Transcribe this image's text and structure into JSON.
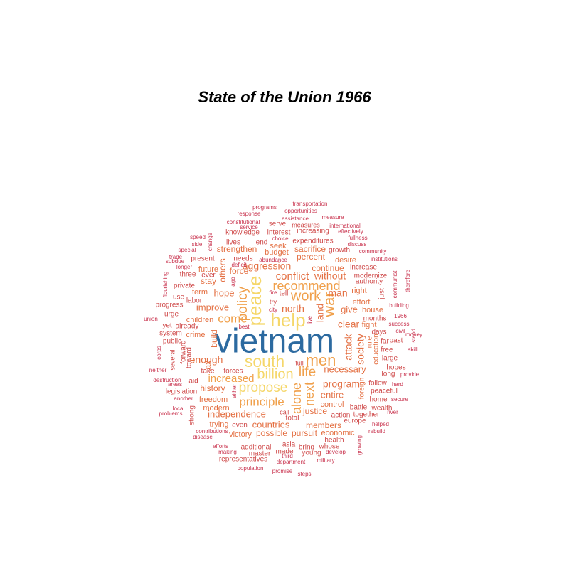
{
  "chart_data": {
    "type": "wordcloud",
    "title": "State of the Union 1966",
    "colors": {
      "tier1": "#2c6aa0",
      "tier2": "#f5d76a",
      "tier3": "#f0a04b",
      "tier4": "#e47043",
      "tier5": "#cf4a4a",
      "tier6": "#c9344f"
    },
    "words": [
      {
        "text": "vietnam",
        "tier": 1,
        "rot": 0
      },
      {
        "text": "help",
        "tier": 2,
        "rot": 0
      },
      {
        "text": "peace",
        "tier": 2,
        "rot": 90
      },
      {
        "text": "south",
        "tier": 2,
        "rot": 0
      },
      {
        "text": "billion",
        "tier": 2,
        "rot": 0
      },
      {
        "text": "propose",
        "tier": 2,
        "rot": 0
      },
      {
        "text": "war",
        "tier": 3,
        "rot": 90
      },
      {
        "text": "men",
        "tier": 3,
        "rot": 0
      },
      {
        "text": "work",
        "tier": 3,
        "rot": 0
      },
      {
        "text": "policy",
        "tier": 3,
        "rot": 90
      },
      {
        "text": "recommend",
        "tier": 3,
        "rot": 0
      },
      {
        "text": "life",
        "tier": 3,
        "rot": 0
      },
      {
        "text": "principle",
        "tier": 3,
        "rot": 0
      },
      {
        "text": "alone",
        "tier": 3,
        "rot": 90
      },
      {
        "text": "next",
        "tier": 3,
        "rot": 90
      },
      {
        "text": "increased",
        "tier": 3,
        "rot": 0
      },
      {
        "text": "come",
        "tier": 3,
        "rot": 0
      },
      {
        "text": "aggression",
        "tier": 4,
        "rot": 0
      },
      {
        "text": "conflict",
        "tier": 4,
        "rot": 0
      },
      {
        "text": "without",
        "tier": 4,
        "rot": 0
      },
      {
        "text": "land",
        "tier": 4,
        "rot": 90
      },
      {
        "text": "north",
        "tier": 4,
        "rot": 0
      },
      {
        "text": "man",
        "tier": 4,
        "rot": 0
      },
      {
        "text": "give",
        "tier": 4,
        "rot": 0
      },
      {
        "text": "clear",
        "tier": 4,
        "rot": 0
      },
      {
        "text": "attack",
        "tier": 4,
        "rot": 90
      },
      {
        "text": "society",
        "tier": 4,
        "rot": 90
      },
      {
        "text": "enough",
        "tier": 4,
        "rot": 0
      },
      {
        "text": "necessary",
        "tier": 4,
        "rot": 0
      },
      {
        "text": "program",
        "tier": 4,
        "rot": 0
      },
      {
        "text": "entire",
        "tier": 4,
        "rot": 0
      },
      {
        "text": "independence",
        "tier": 4,
        "rot": 0
      },
      {
        "text": "countries",
        "tier": 4,
        "rot": 0
      },
      {
        "text": "members",
        "tier": 4,
        "rot": 0
      },
      {
        "text": "justice",
        "tier": 4,
        "rot": 0
      },
      {
        "text": "improve",
        "tier": 4,
        "rot": 0
      },
      {
        "text": "hope",
        "tier": 4,
        "rot": 0
      },
      {
        "text": "others",
        "tier": 4,
        "rot": 90
      },
      {
        "text": "continue",
        "tier": 4,
        "rot": 0
      },
      {
        "text": "percent",
        "tier": 4,
        "rot": 0
      },
      {
        "text": "sacrifice",
        "tier": 4,
        "rot": 0
      },
      {
        "text": "strengthen",
        "tier": 4,
        "rot": 0
      },
      {
        "text": "build",
        "tier": 4,
        "rot": 90
      },
      {
        "text": "tax",
        "tier": 4,
        "rot": 90
      },
      {
        "text": "history",
        "tier": 4,
        "rot": 0
      },
      {
        "text": "freedom",
        "tier": 4,
        "rot": 0
      },
      {
        "text": "possible",
        "tier": 4,
        "rot": 0
      },
      {
        "text": "pursuit",
        "tier": 4,
        "rot": 0
      },
      {
        "text": "victory",
        "tier": 4,
        "rot": 0
      },
      {
        "text": "force",
        "tier": 4,
        "rot": 0
      },
      {
        "text": "stay",
        "tier": 4,
        "rot": 0
      },
      {
        "text": "term",
        "tier": 4,
        "rot": 0
      },
      {
        "text": "future",
        "tier": 4,
        "rot": 0
      },
      {
        "text": "crime",
        "tier": 4,
        "rot": 0
      },
      {
        "text": "children",
        "tier": 4,
        "rot": 0
      },
      {
        "text": "control",
        "tier": 4,
        "rot": 0
      },
      {
        "text": "modern",
        "tier": 4,
        "rot": 0
      },
      {
        "text": "trying",
        "tier": 4,
        "rot": 0
      },
      {
        "text": "seek",
        "tier": 4,
        "rot": 0
      },
      {
        "text": "budget",
        "tier": 4,
        "rot": 0
      },
      {
        "text": "right",
        "tier": 4,
        "rot": 0
      },
      {
        "text": "effort",
        "tier": 4,
        "rot": 0
      },
      {
        "text": "house",
        "tier": 4,
        "rot": 0
      },
      {
        "text": "fight",
        "tier": 4,
        "rot": 0
      },
      {
        "text": "education",
        "tier": 4,
        "rot": 90
      },
      {
        "text": "rule",
        "tier": 4,
        "rot": 90
      },
      {
        "text": "foreign",
        "tier": 4,
        "rot": 90
      },
      {
        "text": "economic",
        "tier": 4,
        "rot": 0
      },
      {
        "text": "desire",
        "tier": 4,
        "rot": 0
      },
      {
        "text": "increase",
        "tier": 5,
        "rot": 0
      },
      {
        "text": "modernize",
        "tier": 5,
        "rot": 0
      },
      {
        "text": "authority",
        "tier": 5,
        "rot": 0
      },
      {
        "text": "just",
        "tier": 5,
        "rot": 90
      },
      {
        "text": "months",
        "tier": 5,
        "rot": 0
      },
      {
        "text": "days",
        "tier": 5,
        "rot": 0
      },
      {
        "text": "past",
        "tier": 5,
        "rot": 0
      },
      {
        "text": "far",
        "tier": 5,
        "rot": 0
      },
      {
        "text": "free",
        "tier": 5,
        "rot": 0
      },
      {
        "text": "large",
        "tier": 5,
        "rot": 0
      },
      {
        "text": "hopes",
        "tier": 5,
        "rot": 0
      },
      {
        "text": "long",
        "tier": 5,
        "rot": 0
      },
      {
        "text": "follow",
        "tier": 5,
        "rot": 0
      },
      {
        "text": "peaceful",
        "tier": 5,
        "rot": 0
      },
      {
        "text": "home",
        "tier": 5,
        "rot": 0
      },
      {
        "text": "battle",
        "tier": 5,
        "rot": 0
      },
      {
        "text": "wealth",
        "tier": 5,
        "rot": 0
      },
      {
        "text": "together",
        "tier": 5,
        "rot": 0
      },
      {
        "text": "europe",
        "tier": 5,
        "rot": 0
      },
      {
        "text": "action",
        "tier": 5,
        "rot": 0
      },
      {
        "text": "total",
        "tier": 5,
        "rot": 0
      },
      {
        "text": "call",
        "tier": 5,
        "rot": 0
      },
      {
        "text": "even",
        "tier": 5,
        "rot": 0
      },
      {
        "text": "whose",
        "tier": 5,
        "rot": 0
      },
      {
        "text": "bring",
        "tier": 5,
        "rot": 0
      },
      {
        "text": "asia",
        "tier": 5,
        "rot": 0
      },
      {
        "text": "made",
        "tier": 5,
        "rot": 0
      },
      {
        "text": "young",
        "tier": 5,
        "rot": 0
      },
      {
        "text": "health",
        "tier": 5,
        "rot": 0
      },
      {
        "text": "additional",
        "tier": 5,
        "rot": 0
      },
      {
        "text": "master",
        "tier": 5,
        "rot": 0
      },
      {
        "text": "representatives",
        "tier": 5,
        "rot": 0
      },
      {
        "text": "legislation",
        "tier": 5,
        "rot": 0
      },
      {
        "text": "aid",
        "tier": 5,
        "rot": 0
      },
      {
        "text": "take",
        "tier": 5,
        "rot": 0
      },
      {
        "text": "forces",
        "tier": 5,
        "rot": 0
      },
      {
        "text": "full",
        "tier": 5,
        "rot": 0
      },
      {
        "text": "toward",
        "tier": 5,
        "rot": 90
      },
      {
        "text": "forward",
        "tier": 5,
        "rot": 90
      },
      {
        "text": "several",
        "tier": 5,
        "rot": 90
      },
      {
        "text": "strong",
        "tier": 5,
        "rot": 90
      },
      {
        "text": "public",
        "tier": 5,
        "rot": 0
      },
      {
        "text": "system",
        "tier": 5,
        "rot": 0
      },
      {
        "text": "already",
        "tier": 5,
        "rot": 0
      },
      {
        "text": "yet",
        "tier": 5,
        "rot": 0
      },
      {
        "text": "urge",
        "tier": 5,
        "rot": 0
      },
      {
        "text": "progress",
        "tier": 5,
        "rot": 0
      },
      {
        "text": "use",
        "tier": 5,
        "rot": 0
      },
      {
        "text": "labor",
        "tier": 5,
        "rot": 0
      },
      {
        "text": "private",
        "tier": 5,
        "rot": 0
      },
      {
        "text": "three",
        "tier": 5,
        "rot": 0
      },
      {
        "text": "present",
        "tier": 5,
        "rot": 0
      },
      {
        "text": "ever",
        "tier": 5,
        "rot": 0
      },
      {
        "text": "needs",
        "tier": 5,
        "rot": 0
      },
      {
        "text": "lives",
        "tier": 5,
        "rot": 0
      },
      {
        "text": "end",
        "tier": 5,
        "rot": 0
      },
      {
        "text": "knowledge",
        "tier": 5,
        "rot": 0
      },
      {
        "text": "interest",
        "tier": 5,
        "rot": 0
      },
      {
        "text": "increasing",
        "tier": 5,
        "rot": 0
      },
      {
        "text": "serve",
        "tier": 5,
        "rot": 0
      },
      {
        "text": "measures",
        "tier": 5,
        "rot": 0
      },
      {
        "text": "expenditures",
        "tier": 5,
        "rot": 0
      },
      {
        "text": "growth",
        "tier": 5,
        "rot": 0
      },
      {
        "text": "tell",
        "tier": 5,
        "rot": 0
      },
      {
        "text": "try",
        "tier": 5,
        "rot": 0
      },
      {
        "text": "neither",
        "tier": 6,
        "rot": 0
      },
      {
        "text": "destruction",
        "tier": 6,
        "rot": 0
      },
      {
        "text": "areas",
        "tier": 6,
        "rot": 0
      },
      {
        "text": "corps",
        "tier": 6,
        "rot": 90
      },
      {
        "text": "another",
        "tier": 6,
        "rot": 0
      },
      {
        "text": "local",
        "tier": 6,
        "rot": 0
      },
      {
        "text": "problems",
        "tier": 6,
        "rot": 0
      },
      {
        "text": "contributions",
        "tier": 6,
        "rot": 0
      },
      {
        "text": "disease",
        "tier": 6,
        "rot": 0
      },
      {
        "text": "efforts",
        "tier": 6,
        "rot": 0
      },
      {
        "text": "making",
        "tier": 6,
        "rot": 0
      },
      {
        "text": "population",
        "tier": 6,
        "rot": 0
      },
      {
        "text": "promise",
        "tier": 6,
        "rot": 0
      },
      {
        "text": "steps",
        "tier": 6,
        "rot": 0
      },
      {
        "text": "department",
        "tier": 6,
        "rot": 0
      },
      {
        "text": "third",
        "tier": 6,
        "rot": 0
      },
      {
        "text": "military",
        "tier": 6,
        "rot": 0
      },
      {
        "text": "develop",
        "tier": 6,
        "rot": 0
      },
      {
        "text": "growing",
        "tier": 6,
        "rot": 90
      },
      {
        "text": "rebuild",
        "tier": 6,
        "rot": 0
      },
      {
        "text": "helped",
        "tier": 6,
        "rot": 0
      },
      {
        "text": "river",
        "tier": 6,
        "rot": 0
      },
      {
        "text": "secure",
        "tier": 6,
        "rot": 0
      },
      {
        "text": "hard",
        "tier": 6,
        "rot": 0
      },
      {
        "text": "provide",
        "tier": 6,
        "rot": 0
      },
      {
        "text": "skill",
        "tier": 6,
        "rot": 0
      },
      {
        "text": "money",
        "tier": 6,
        "rot": 0
      },
      {
        "text": "stand",
        "tier": 6,
        "rot": 90
      },
      {
        "text": "civil",
        "tier": 6,
        "rot": 0
      },
      {
        "text": "success",
        "tier": 6,
        "rot": 0
      },
      {
        "text": "1966",
        "tier": 6,
        "rot": 0
      },
      {
        "text": "building",
        "tier": 6,
        "rot": 0
      },
      {
        "text": "communist",
        "tier": 6,
        "rot": 90
      },
      {
        "text": "therefore",
        "tier": 6,
        "rot": 90
      },
      {
        "text": "institutions",
        "tier": 6,
        "rot": 0
      },
      {
        "text": "community",
        "tier": 6,
        "rot": 0
      },
      {
        "text": "discuss",
        "tier": 6,
        "rot": 0
      },
      {
        "text": "fullness",
        "tier": 6,
        "rot": 0
      },
      {
        "text": "effectively",
        "tier": 6,
        "rot": 0
      },
      {
        "text": "international",
        "tier": 6,
        "rot": 0
      },
      {
        "text": "measure",
        "tier": 6,
        "rot": 0
      },
      {
        "text": "assistance",
        "tier": 6,
        "rot": 0
      },
      {
        "text": "opportunities",
        "tier": 6,
        "rot": 0
      },
      {
        "text": "transportation",
        "tier": 6,
        "rot": 0
      },
      {
        "text": "programs",
        "tier": 6,
        "rot": 0
      },
      {
        "text": "response",
        "tier": 6,
        "rot": 0
      },
      {
        "text": "constitutional",
        "tier": 6,
        "rot": 0
      },
      {
        "text": "service",
        "tier": 6,
        "rot": 0
      },
      {
        "text": "choice",
        "tier": 6,
        "rot": 0
      },
      {
        "text": "abundance",
        "tier": 6,
        "rot": 0
      },
      {
        "text": "deficit",
        "tier": 6,
        "rot": 0
      },
      {
        "text": "ago",
        "tier": 6,
        "rot": 90
      },
      {
        "text": "change",
        "tier": 6,
        "rot": 90
      },
      {
        "text": "speed",
        "tier": 6,
        "rot": 0
      },
      {
        "text": "side",
        "tier": 6,
        "rot": 0
      },
      {
        "text": "special",
        "tier": 6,
        "rot": 0
      },
      {
        "text": "trade",
        "tier": 6,
        "rot": 0
      },
      {
        "text": "subdue",
        "tier": 6,
        "rot": 0
      },
      {
        "text": "longer",
        "tier": 6,
        "rot": 0
      },
      {
        "text": "flourishing",
        "tier": 6,
        "rot": 90
      },
      {
        "text": "union",
        "tier": 6,
        "rot": 0
      },
      {
        "text": "fire",
        "tier": 6,
        "rot": 0
      },
      {
        "text": "city",
        "tier": 6,
        "rot": 0
      },
      {
        "text": "live",
        "tier": 6,
        "rot": 90
      },
      {
        "text": "best",
        "tier": 6,
        "rot": 0
      },
      {
        "text": "either",
        "tier": 6,
        "rot": 90
      }
    ]
  }
}
